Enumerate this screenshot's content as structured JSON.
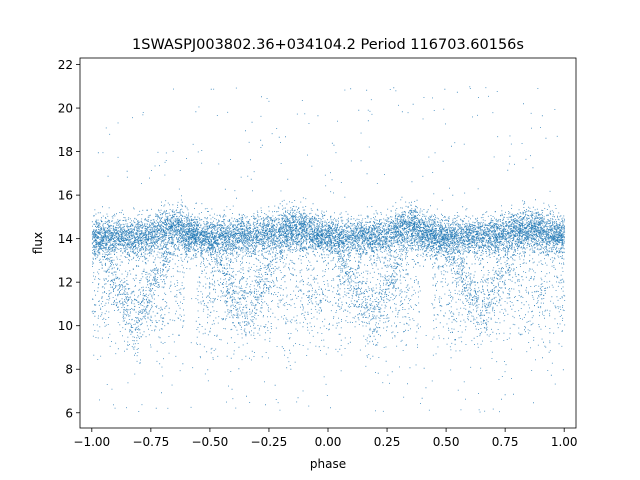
{
  "chart_data": {
    "type": "scatter",
    "title": "1SWASPJ003802.36+034104.2 Period 116703.60156s",
    "xlabel": "phase",
    "ylabel": "flux",
    "xlim": [
      -1.05,
      1.05
    ],
    "ylim": [
      5.3,
      22.3
    ],
    "xticks": [
      -1.0,
      -0.75,
      -0.5,
      -0.25,
      0.0,
      0.25,
      0.5,
      0.75,
      1.0
    ],
    "xtick_labels": [
      "−1.00",
      "−0.75",
      "−0.50",
      "−0.25",
      "0.00",
      "0.25",
      "0.50",
      "0.75",
      "1.00"
    ],
    "yticks": [
      6,
      8,
      10,
      12,
      14,
      16,
      18,
      20,
      22
    ],
    "ytick_labels": [
      "6",
      "8",
      "10",
      "12",
      "14",
      "16",
      "18",
      "20",
      "22"
    ],
    "grid": false,
    "series": [
      {
        "color": "#1f77b4",
        "marker_size": 0.9,
        "approx_point_count": 30000,
        "x_range": [
          -1.0,
          1.0
        ],
        "main_band": {
          "center": 14.1,
          "range": [
            13.2,
            15.0
          ]
        },
        "lower_branches": [
          {
            "phase_center": -0.82,
            "flux_range": [
              8.8,
              12.5
            ]
          },
          {
            "phase_center": -0.35,
            "flux_range": [
              9.3,
              12.0
            ]
          },
          {
            "phase_center": 0.18,
            "flux_range": [
              8.8,
              12.5
            ]
          },
          {
            "phase_center": 0.65,
            "flux_range": [
              9.3,
              12.0
            ]
          }
        ],
        "outlier_range": [
          6.0,
          21.0
        ]
      }
    ]
  }
}
